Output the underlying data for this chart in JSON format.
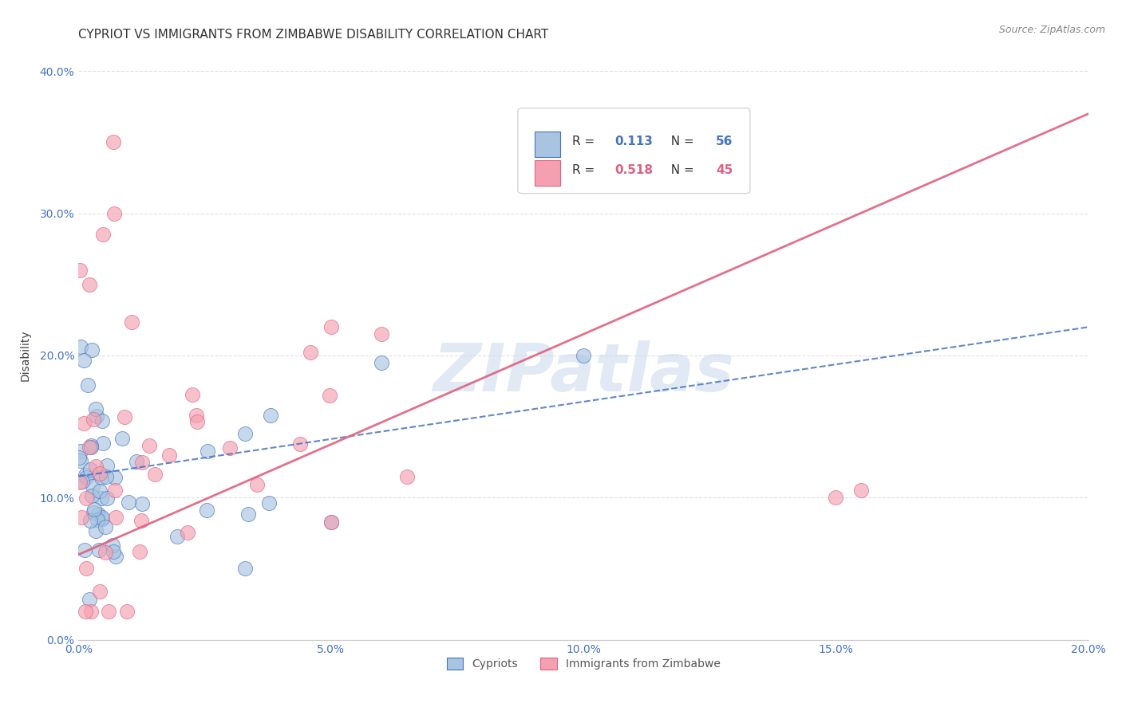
{
  "title": "CYPRIOT VS IMMIGRANTS FROM ZIMBABWE DISABILITY CORRELATION CHART",
  "source": "Source: ZipAtlas.com",
  "xlabel_blue": "Cypriots",
  "xlabel_pink": "Immigrants from Zimbabwe",
  "ylabel": "Disability",
  "xlim": [
    0.0,
    0.2
  ],
  "ylim": [
    0.0,
    0.4
  ],
  "xticks": [
    0.0,
    0.05,
    0.1,
    0.15,
    0.2
  ],
  "yticks": [
    0.0,
    0.1,
    0.2,
    0.3,
    0.4
  ],
  "blue_R": 0.113,
  "blue_N": 56,
  "pink_R": 0.518,
  "pink_N": 45,
  "blue_color": "#a8c4e0",
  "pink_color": "#f4a0b0",
  "blue_edge_color": "#4472c4",
  "pink_edge_color": "#e06080",
  "blue_line_color": "#4472c4",
  "pink_line_color": "#e06080",
  "background_color": "#ffffff",
  "grid_color": "#dddddd",
  "watermark_color": "#c8d8ec",
  "title_fontsize": 11,
  "axis_label_fontsize": 10,
  "tick_fontsize": 10,
  "legend_fontsize": 11,
  "blue_trend_x0": 0.0,
  "blue_trend_x1": 0.2,
  "blue_trend_y0": 0.115,
  "blue_trend_y1": 0.22,
  "pink_trend_x0": 0.0,
  "pink_trend_x1": 0.2,
  "pink_trend_y0": 0.06,
  "pink_trend_y1": 0.37
}
